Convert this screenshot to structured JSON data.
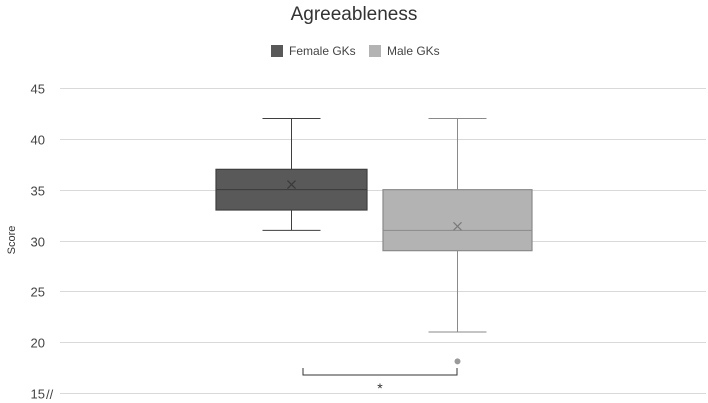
{
  "chart_data": {
    "type": "boxplot",
    "title": "Agreeableness",
    "ylabel": "Score",
    "xlabel": "",
    "ylim": [
      15,
      45
    ],
    "yticks": [
      15,
      20,
      25,
      30,
      35,
      40,
      45
    ],
    "axis_break_mark": "//",
    "legend_position": "top-center",
    "gridlines": true,
    "series": [
      {
        "name": "Female GKs",
        "color": "#595959",
        "min": 31,
        "q1": 33,
        "median": 35,
        "q3": 37,
        "max": 42,
        "mean": 35.5,
        "outliers": []
      },
      {
        "name": "Male GKs",
        "color": "#b3b3b3",
        "min": 21,
        "q1": 29,
        "median": 31,
        "q3": 35,
        "max": 42,
        "mean": 31.4,
        "outliers": [
          19
        ]
      }
    ],
    "significance": {
      "label": "*",
      "between": [
        "Female GKs",
        "Male GKs"
      ]
    }
  }
}
